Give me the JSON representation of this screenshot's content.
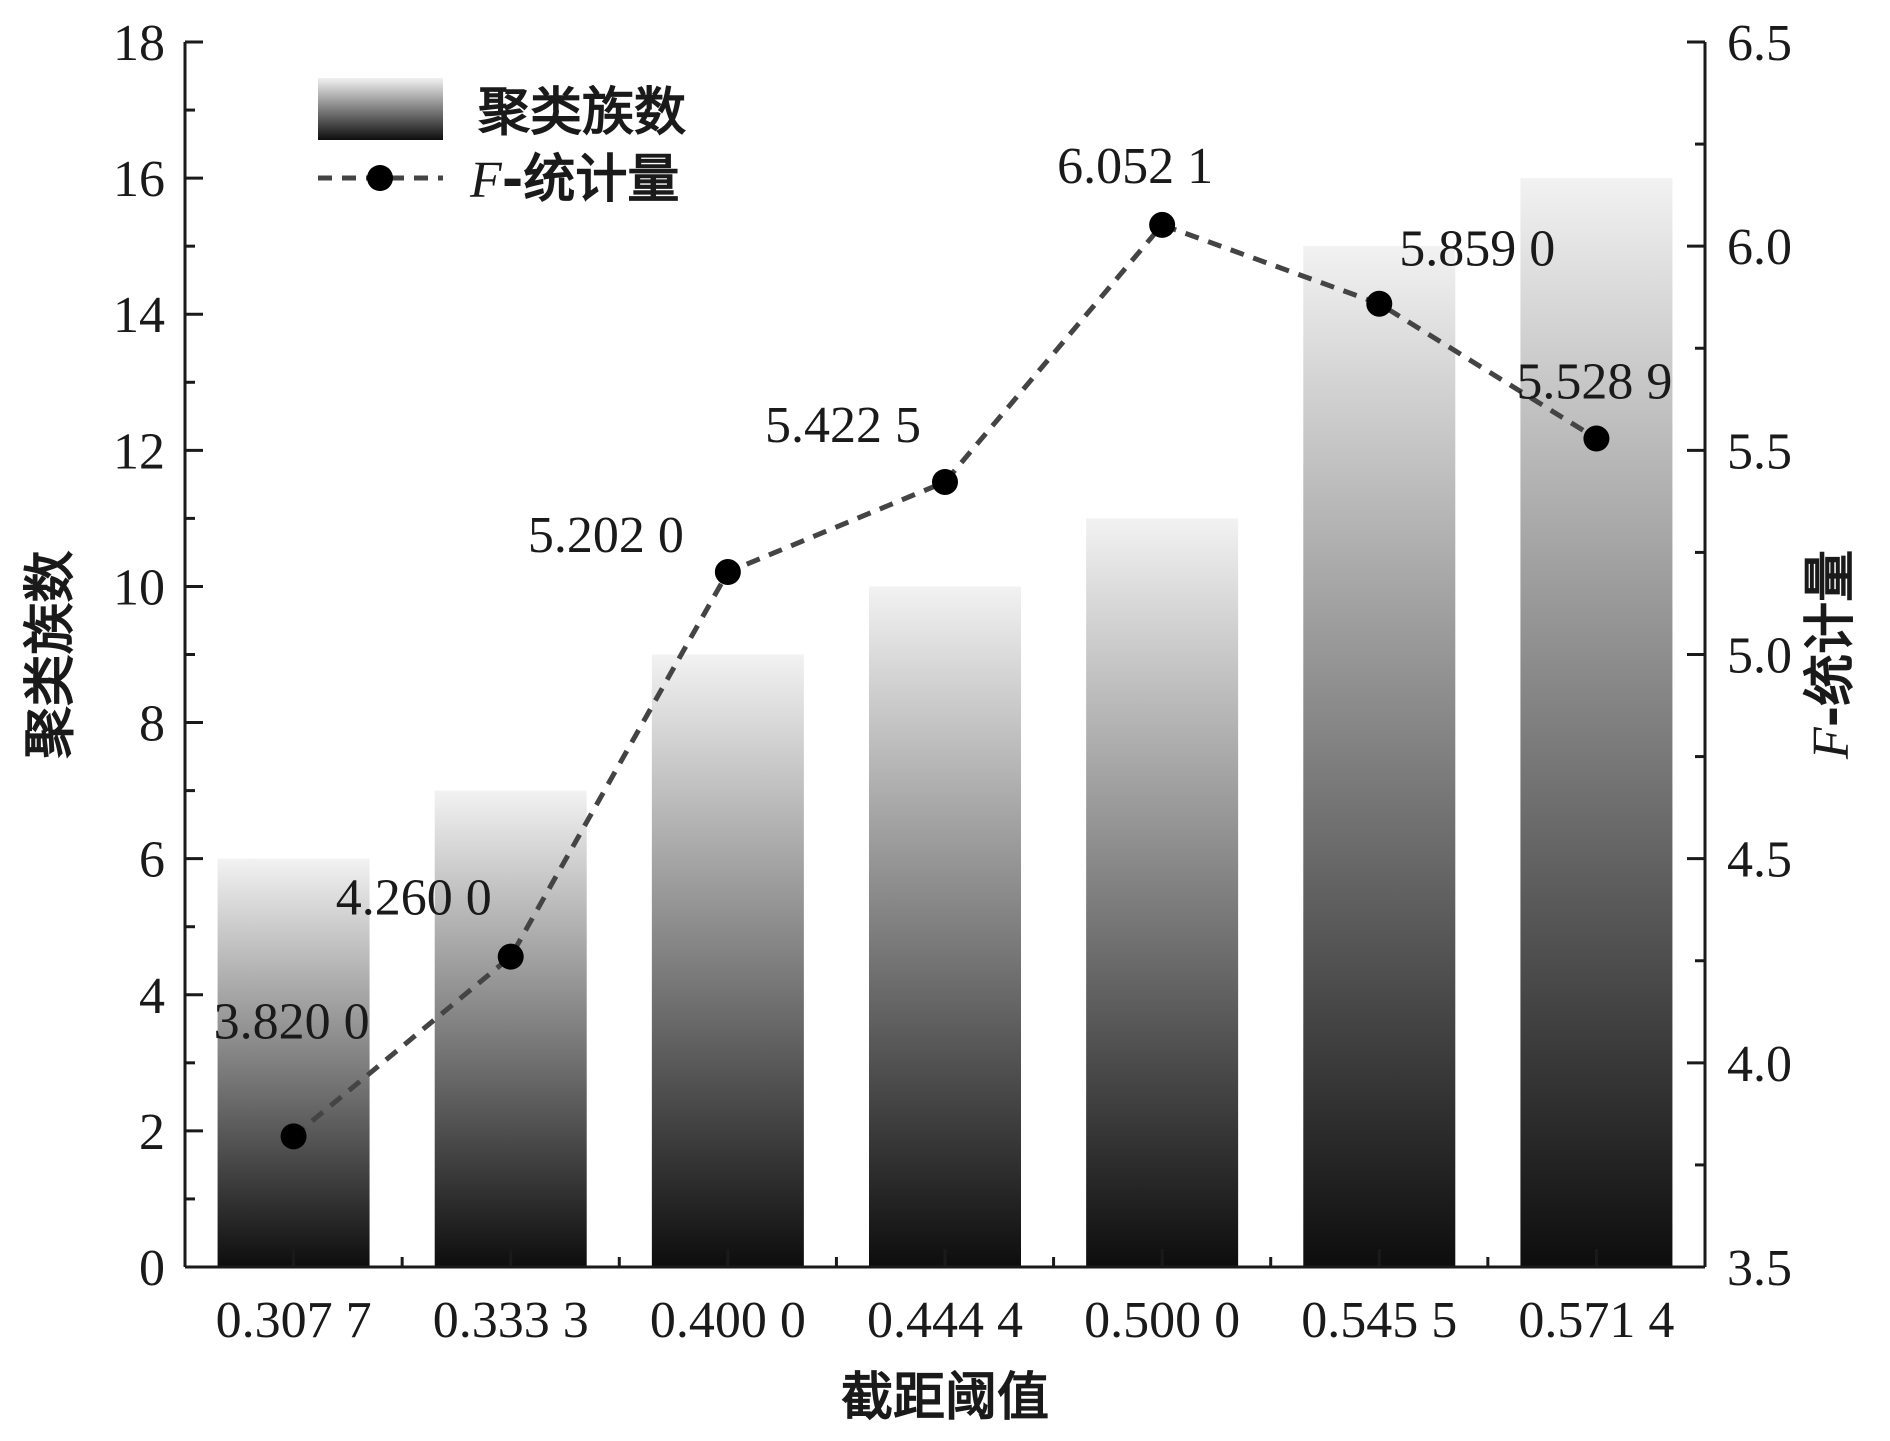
{
  "chart_data": {
    "type": "bar",
    "categories": [
      "0.307 7",
      "0.333 3",
      "0.400 0",
      "0.444 4",
      "0.500 0",
      "0.545 5",
      "0.571 4"
    ],
    "series": [
      {
        "name": "聚类族数",
        "type": "bar",
        "axis": "left",
        "values": [
          6,
          7,
          9,
          10,
          11,
          15,
          16
        ]
      },
      {
        "name_prefix": "F",
        "name_suffix": "-统计量",
        "type": "line",
        "axis": "right",
        "style": "dashed",
        "marker": "circle",
        "values": [
          3.82,
          4.26,
          5.202,
          5.4225,
          6.0521,
          5.859,
          5.5289
        ],
        "labels": [
          "3.820 0",
          "4.260 0",
          "5.202 0",
          "5.422 5",
          "6.052 1",
          "5.859 0",
          "5.528 9"
        ]
      }
    ],
    "xlabel": "截距阈值",
    "ylabel": "聚类族数",
    "y2label_prefix": "F",
    "y2label_suffix": "-统计量",
    "ylim": [
      0,
      18
    ],
    "yticks": [
      "0",
      "2",
      "4",
      "6",
      "8",
      "10",
      "12",
      "14",
      "16",
      "18"
    ],
    "y2lim": [
      3.5,
      6.5
    ],
    "y2ticks": [
      "3.5",
      "4.0",
      "4.5",
      "5.0",
      "5.5",
      "6.0",
      "6.5"
    ],
    "legend_position": "top-left",
    "grid": false,
    "colors": {
      "bar_top": "#f2f2f2",
      "bar_bottom": "#0d0d0d",
      "line": "#444444",
      "marker": "#000000",
      "axis": "#1a1a1a"
    }
  }
}
